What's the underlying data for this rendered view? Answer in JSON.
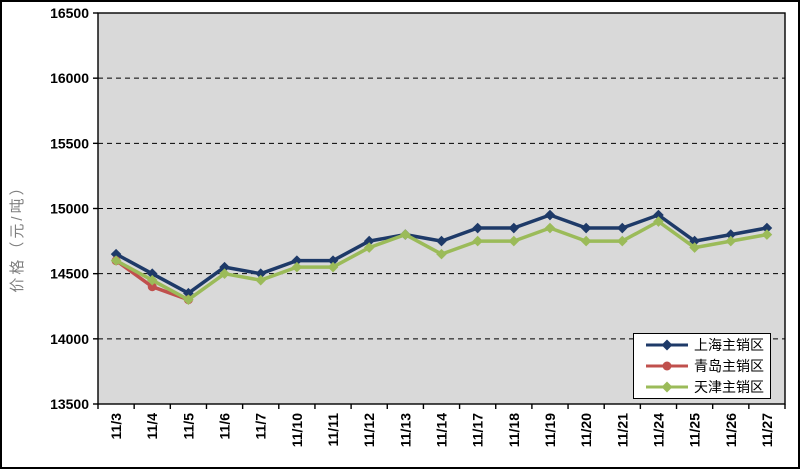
{
  "chart_data": {
    "type": "line",
    "title": "",
    "xlabel": "",
    "ylabel": "价格（元/吨）",
    "ylim": [
      13500,
      16500
    ],
    "ytick_step": 500,
    "grid": "horizontal-dashed",
    "legend_position": "inset-bottom-right",
    "categories": [
      "11/3",
      "11/4",
      "11/5",
      "11/6",
      "11/7",
      "11/10",
      "11/11",
      "11/12",
      "11/13",
      "11/14",
      "11/17",
      "11/18",
      "11/19",
      "11/20",
      "11/21",
      "11/24",
      "11/25",
      "11/26",
      "11/27"
    ],
    "series": [
      {
        "name": "上海主销区",
        "color": "#1E3A68",
        "marker": "diamond",
        "values": [
          14650,
          14500,
          14350,
          14550,
          14500,
          14600,
          14600,
          14750,
          14800,
          14750,
          14850,
          14850,
          14950,
          14850,
          14850,
          14950,
          14750,
          14800,
          14850
        ]
      },
      {
        "name": "青岛主销区",
        "color": "#C0504D",
        "marker": "circle",
        "values": [
          14600,
          14400,
          14300,
          null,
          null,
          null,
          null,
          null,
          null,
          null,
          null,
          null,
          null,
          null,
          null,
          null,
          null,
          null,
          null
        ]
      },
      {
        "name": "天津主销区",
        "color": "#9BBB59",
        "marker": "diamond",
        "values": [
          14600,
          14450,
          14300,
          14500,
          14450,
          14550,
          14550,
          14700,
          14800,
          14650,
          14750,
          14750,
          14850,
          14750,
          14750,
          14900,
          14700,
          14750,
          14800
        ]
      }
    ]
  },
  "colors": {
    "plot_bg": "#D9D9D9",
    "axis": "#000000",
    "ylabel_color": "#7F7F7F",
    "frame_border": "#000000",
    "legend_bg": "#FFFFFF"
  }
}
